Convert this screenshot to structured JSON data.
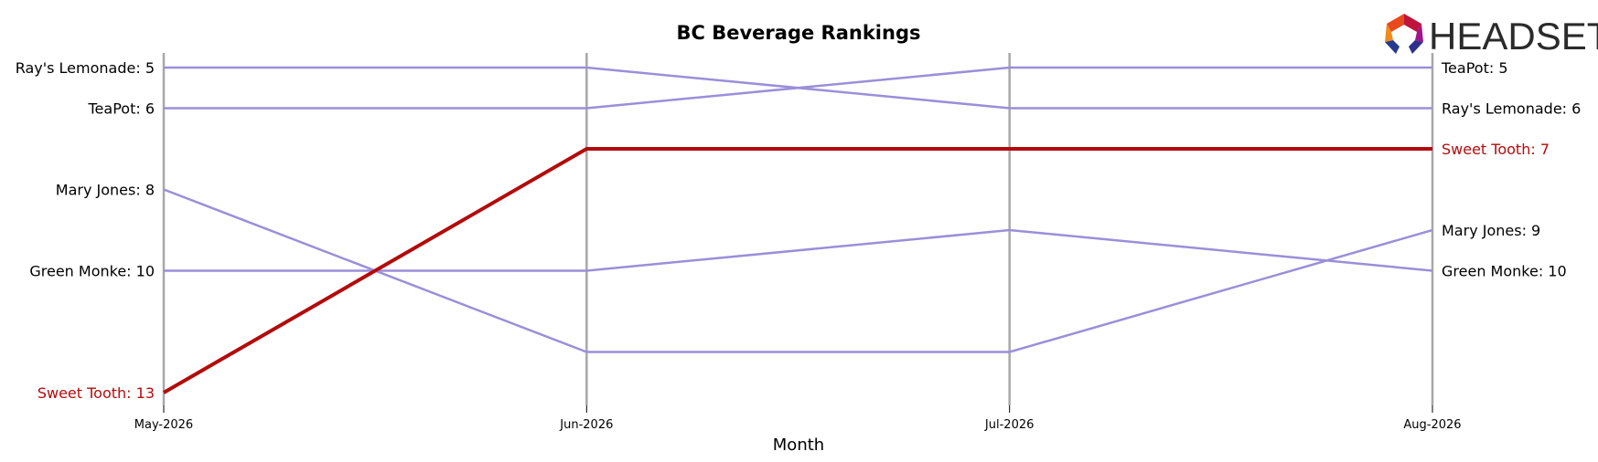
{
  "chart_data": {
    "type": "line",
    "title": "BC Beverage Rankings",
    "xlabel": "Month",
    "ylabel": "",
    "x": [
      "May-2026",
      "Jun-2026",
      "Jul-2026",
      "Aug-2026"
    ],
    "y_inverted": true,
    "ylim": [
      4.6,
      13.4
    ],
    "grid": false,
    "series": [
      {
        "name": "Ray's Lemonade",
        "values": [
          5,
          5,
          6,
          6
        ],
        "highlight": false
      },
      {
        "name": "TeaPot",
        "values": [
          6,
          6,
          5,
          5
        ],
        "highlight": false
      },
      {
        "name": "Mary Jones",
        "values": [
          8,
          12,
          12,
          9
        ],
        "highlight": false
      },
      {
        "name": "Green Monke",
        "values": [
          10,
          10,
          9,
          10
        ],
        "highlight": false
      },
      {
        "name": "Sweet Tooth",
        "values": [
          13,
          7,
          7,
          7
        ],
        "highlight": true
      }
    ],
    "left_labels": [
      "Ray's Lemonade: 5",
      "TeaPot: 6",
      "Mary Jones: 8",
      "Green Monke: 10",
      "Sweet Tooth: 13"
    ],
    "right_labels": [
      "Ray's Lemonade: 6",
      "TeaPot: 5",
      "Mary Jones: 9",
      "Green Monke: 10",
      "Sweet Tooth: 7"
    ],
    "colors": {
      "normal": "#9b8fd9",
      "highlight": "#b30b0b",
      "axis": "#a8a8a8",
      "text": "#000000"
    }
  },
  "logo": {
    "text": "HEADSET"
  }
}
